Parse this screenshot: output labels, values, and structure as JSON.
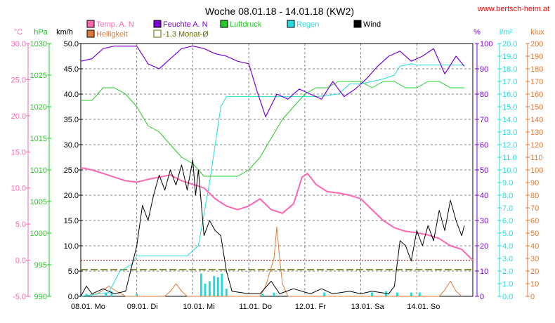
{
  "header": {
    "title": "Woche 08.01.18 - 14.01.18 (KW2)",
    "site": "www.bertsch-heim.at"
  },
  "colors": {
    "temp": "#ff66b2",
    "humidity": "#7a00d8",
    "pressure": "#22cc22",
    "rain": "#22dddd",
    "wind": "#000000",
    "brightness": "#e07a38",
    "avg": "#666600",
    "grid": "#808080",
    "site": "#ff0000"
  },
  "chart_data": {
    "type": "line",
    "title": "Woche 08.01.18 - 14.01.18 (KW2)",
    "x_labels": [
      "08.01. Mo",
      "09.01. Di",
      "10.01. Mi",
      "11.01. Do",
      "12.01. Fr",
      "13.01. Sa",
      "14.01. So"
    ],
    "legend": [
      {
        "key": "temp",
        "label": "Temp. A. N"
      },
      {
        "key": "humidity",
        "label": "Feuchte A. N"
      },
      {
        "key": "pressure",
        "label": "Luftdruck"
      },
      {
        "key": "rain",
        "label": "Regen"
      },
      {
        "key": "wind",
        "label": "Wind"
      },
      {
        "key": "brightness",
        "label": "Helligkeit"
      },
      {
        "key": "avg",
        "label": "-1.3 Monat-Ø"
      }
    ],
    "axes": {
      "temp": {
        "unit": "°C",
        "ticks": [
          "30.0",
          "25.0",
          "20.0",
          "15.0",
          "10.0",
          "5.0",
          "0.0",
          "-5.0"
        ],
        "min": -5,
        "max": 30
      },
      "pressure": {
        "unit": "hPa",
        "ticks": [
          "1030",
          "1025",
          "1020",
          "1015",
          "1010",
          "1005",
          "1000",
          "995",
          "990"
        ],
        "min": 990,
        "max": 1030
      },
      "wind": {
        "unit": "km/h",
        "ticks": [
          "50.0",
          "45.0",
          "40.0",
          "35.0",
          "30.0",
          "25.0",
          "20.0",
          "15.0",
          "10.0",
          "5.0",
          "0.0"
        ],
        "min": 0,
        "max": 50
      },
      "humidity": {
        "unit": "%",
        "ticks": [
          "100",
          "90",
          "80",
          "70",
          "60",
          "50",
          "40",
          "30",
          "20",
          "10",
          "0"
        ],
        "min": 0,
        "max": 100
      },
      "rain": {
        "unit": "l/m²",
        "ticks": [
          "20.0",
          "19.0",
          "18.0",
          "17.0",
          "16.0",
          "15.0",
          "14.0",
          "13.0",
          "12.0",
          "11.0",
          "10.0",
          "9.0",
          "8.0",
          "7.0",
          "6.0",
          "5.0",
          "4.0",
          "3.0",
          "2.0",
          "1.0",
          "0.0"
        ],
        "min": 0,
        "max": 20
      },
      "brightness": {
        "unit": "klux",
        "ticks": [
          "200",
          "190",
          "180",
          "170",
          "160",
          "150",
          "140",
          "130",
          "120",
          "110",
          "100",
          "90",
          "80",
          "70",
          "60",
          "50",
          "40",
          "30",
          "20",
          "10",
          "0"
        ],
        "min": 0,
        "max": 200
      }
    },
    "reference_lines": {
      "temp_zero": 0.0,
      "month_avg_temp": -1.3
    },
    "x_range": [
      0,
      7
    ],
    "series": {
      "temp": [
        [
          0,
          12.8
        ],
        [
          0.2,
          12.5
        ],
        [
          0.4,
          12.0
        ],
        [
          0.6,
          11.5
        ],
        [
          0.8,
          11.0
        ],
        [
          1.0,
          10.8
        ],
        [
          1.2,
          11.2
        ],
        [
          1.4,
          11.5
        ],
        [
          1.6,
          11.8
        ],
        [
          1.8,
          11.0
        ],
        [
          2.0,
          10.5
        ],
        [
          2.2,
          10.0
        ],
        [
          2.4,
          8.5
        ],
        [
          2.6,
          7.5
        ],
        [
          2.8,
          7.0
        ],
        [
          3.0,
          7.5
        ],
        [
          3.2,
          8.5
        ],
        [
          3.4,
          7.0
        ],
        [
          3.6,
          6.5
        ],
        [
          3.8,
          7.8
        ],
        [
          3.95,
          11.5
        ],
        [
          4.05,
          12.0
        ],
        [
          4.2,
          10.5
        ],
        [
          4.4,
          9.5
        ],
        [
          4.6,
          9.3
        ],
        [
          4.8,
          9.0
        ],
        [
          5.0,
          8.5
        ],
        [
          5.2,
          7.0
        ],
        [
          5.4,
          5.5
        ],
        [
          5.6,
          4.5
        ],
        [
          5.8,
          4.0
        ],
        [
          6.0,
          3.8
        ],
        [
          6.2,
          3.5
        ],
        [
          6.4,
          3.0
        ],
        [
          6.6,
          2.0
        ],
        [
          6.8,
          1.5
        ],
        [
          7.0,
          0.0
        ]
      ],
      "humidity": [
        [
          0,
          93
        ],
        [
          0.2,
          94
        ],
        [
          0.4,
          98
        ],
        [
          0.6,
          99
        ],
        [
          0.8,
          99
        ],
        [
          1.0,
          99
        ],
        [
          1.2,
          92
        ],
        [
          1.4,
          90
        ],
        [
          1.6,
          94
        ],
        [
          1.8,
          98
        ],
        [
          2.0,
          99
        ],
        [
          2.2,
          98
        ],
        [
          2.4,
          96
        ],
        [
          2.6,
          95
        ],
        [
          2.8,
          93
        ],
        [
          3.0,
          92
        ],
        [
          3.15,
          81
        ],
        [
          3.3,
          71
        ],
        [
          3.5,
          80
        ],
        [
          3.7,
          78
        ],
        [
          3.9,
          82
        ],
        [
          4.1,
          80
        ],
        [
          4.3,
          78
        ],
        [
          4.5,
          85
        ],
        [
          4.7,
          79
        ],
        [
          4.9,
          82
        ],
        [
          5.1,
          86
        ],
        [
          5.3,
          91
        ],
        [
          5.5,
          95
        ],
        [
          5.7,
          97
        ],
        [
          5.9,
          93
        ],
        [
          6.1,
          95
        ],
        [
          6.3,
          98
        ],
        [
          6.5,
          88
        ],
        [
          6.7,
          95
        ],
        [
          6.85,
          91
        ]
      ],
      "pressure": [
        [
          0,
          1021
        ],
        [
          0.2,
          1021
        ],
        [
          0.4,
          1023
        ],
        [
          0.6,
          1023
        ],
        [
          0.8,
          1022
        ],
        [
          1.0,
          1020
        ],
        [
          1.2,
          1017
        ],
        [
          1.4,
          1016
        ],
        [
          1.6,
          1014
        ],
        [
          1.8,
          1012
        ],
        [
          2.0,
          1011
        ],
        [
          2.2,
          1009
        ],
        [
          2.4,
          1009
        ],
        [
          2.6,
          1009
        ],
        [
          2.8,
          1009
        ],
        [
          3.0,
          1010
        ],
        [
          3.2,
          1012
        ],
        [
          3.4,
          1015
        ],
        [
          3.6,
          1018
        ],
        [
          3.8,
          1020
        ],
        [
          4.0,
          1022
        ],
        [
          4.2,
          1023
        ],
        [
          4.4,
          1023
        ],
        [
          4.6,
          1024
        ],
        [
          4.8,
          1024
        ],
        [
          5.0,
          1024
        ],
        [
          5.2,
          1023
        ],
        [
          5.4,
          1024
        ],
        [
          5.6,
          1024
        ],
        [
          5.8,
          1023
        ],
        [
          6.0,
          1023
        ],
        [
          6.2,
          1024
        ],
        [
          6.4,
          1024
        ],
        [
          6.6,
          1023
        ],
        [
          6.85,
          1023
        ]
      ],
      "rain": [
        [
          0,
          0
        ],
        [
          0.5,
          0.3
        ],
        [
          0.7,
          2.0
        ],
        [
          0.9,
          2.5
        ],
        [
          1.0,
          3.2
        ],
        [
          1.2,
          3.2
        ],
        [
          1.6,
          3.2
        ],
        [
          1.9,
          3.2
        ],
        [
          2.1,
          4.0
        ],
        [
          2.3,
          9.0
        ],
        [
          2.5,
          15.0
        ],
        [
          2.6,
          15.8
        ],
        [
          2.8,
          15.8
        ],
        [
          3.5,
          15.8
        ],
        [
          4.2,
          15.8
        ],
        [
          4.6,
          16.0
        ],
        [
          4.8,
          16.8
        ],
        [
          5.0,
          16.8
        ],
        [
          5.2,
          17.0
        ],
        [
          5.4,
          17.2
        ],
        [
          5.6,
          17.5
        ],
        [
          5.7,
          18.2
        ],
        [
          5.9,
          18.4
        ],
        [
          6.0,
          18.3
        ],
        [
          6.2,
          18.3
        ],
        [
          6.85,
          18.3
        ]
      ],
      "rain_bars": [
        [
          0.1,
          0.2
        ],
        [
          0.45,
          0.3
        ],
        [
          0.55,
          0.4
        ],
        [
          1.0,
          0.2
        ],
        [
          2.15,
          1.8
        ],
        [
          2.22,
          1.0
        ],
        [
          2.3,
          1.2
        ],
        [
          2.38,
          1.6
        ],
        [
          2.45,
          1.5
        ],
        [
          2.52,
          1.8
        ],
        [
          2.6,
          0.6
        ],
        [
          3.25,
          0.2
        ],
        [
          3.45,
          0.3
        ],
        [
          4.35,
          0.3
        ],
        [
          5.2,
          0.3
        ],
        [
          5.45,
          0.4
        ],
        [
          5.65,
          0.3
        ],
        [
          5.9,
          0.3
        ],
        [
          6.05,
          0.3
        ]
      ],
      "wind": [
        [
          0,
          0
        ],
        [
          0.1,
          2.0
        ],
        [
          0.2,
          0.5
        ],
        [
          0.4,
          1.5
        ],
        [
          0.6,
          0.5
        ],
        [
          0.8,
          1.0
        ],
        [
          1.0,
          10.0
        ],
        [
          1.1,
          18.0
        ],
        [
          1.2,
          15.0
        ],
        [
          1.3,
          20.0
        ],
        [
          1.4,
          24.0
        ],
        [
          1.5,
          21.0
        ],
        [
          1.6,
          25.0
        ],
        [
          1.7,
          22.0
        ],
        [
          1.8,
          26.0
        ],
        [
          1.9,
          21.0
        ],
        [
          2.0,
          27.0
        ],
        [
          2.05,
          20.0
        ],
        [
          2.1,
          25.0
        ],
        [
          2.2,
          12.0
        ],
        [
          2.3,
          15.0
        ],
        [
          2.4,
          13.0
        ],
        [
          2.5,
          12.0
        ],
        [
          2.6,
          5.0
        ],
        [
          2.7,
          1.0
        ],
        [
          3.0,
          0.5
        ],
        [
          3.2,
          0.5
        ],
        [
          3.4,
          3.0
        ],
        [
          3.55,
          0.5
        ],
        [
          3.8,
          1.5
        ],
        [
          4.1,
          0.5
        ],
        [
          4.3,
          1.5
        ],
        [
          4.5,
          0.5
        ],
        [
          4.8,
          1.0
        ],
        [
          5.0,
          0.5
        ],
        [
          5.2,
          1.0
        ],
        [
          5.5,
          0.5
        ],
        [
          5.6,
          2.0
        ],
        [
          5.7,
          11.0
        ],
        [
          5.8,
          10.0
        ],
        [
          5.9,
          7.0
        ],
        [
          6.0,
          13.0
        ],
        [
          6.1,
          10.0
        ],
        [
          6.2,
          14.0
        ],
        [
          6.3,
          11.0
        ],
        [
          6.4,
          17.0
        ],
        [
          6.5,
          13.0
        ],
        [
          6.6,
          19.0
        ],
        [
          6.7,
          15.0
        ],
        [
          6.8,
          12.0
        ],
        [
          6.85,
          14.0
        ]
      ],
      "brightness": [
        [
          0,
          0
        ],
        [
          0.3,
          2
        ],
        [
          0.5,
          8
        ],
        [
          0.6,
          5
        ],
        [
          0.8,
          0
        ],
        [
          1.5,
          0
        ],
        [
          1.6,
          4
        ],
        [
          1.7,
          10
        ],
        [
          1.8,
          4
        ],
        [
          1.9,
          0
        ],
        [
          3.2,
          0
        ],
        [
          3.3,
          8
        ],
        [
          3.45,
          30
        ],
        [
          3.5,
          55
        ],
        [
          3.55,
          30
        ],
        [
          3.6,
          10
        ],
        [
          3.7,
          0
        ],
        [
          6.4,
          0
        ],
        [
          6.5,
          5
        ],
        [
          6.6,
          12
        ],
        [
          6.7,
          4
        ],
        [
          6.8,
          0
        ]
      ]
    }
  }
}
